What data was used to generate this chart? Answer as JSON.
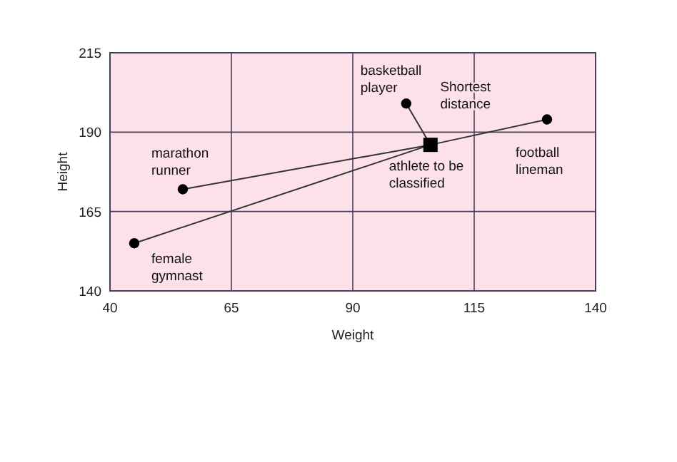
{
  "chart_data": {
    "type": "scatter",
    "xlabel": "Weight",
    "ylabel": "Height",
    "xlim": [
      40,
      140
    ],
    "xticks": [
      40,
      65,
      90,
      115,
      140
    ],
    "ylim": [
      140,
      215
    ],
    "yticks": [
      140,
      165,
      190,
      215
    ],
    "grid": true,
    "series": [
      {
        "type": "line",
        "x": [
          45,
          106
        ],
        "values": [
          155,
          186
        ],
        "color": "#333333"
      },
      {
        "type": "line",
        "x": [
          55,
          106
        ],
        "values": [
          172,
          186
        ],
        "color": "#333333"
      },
      {
        "type": "line",
        "x": [
          101,
          106
        ],
        "values": [
          199,
          186
        ],
        "color": "#333333"
      },
      {
        "type": "line",
        "x": [
          130,
          106
        ],
        "values": [
          194,
          186
        ],
        "color": "#333333"
      },
      {
        "x": [
          45,
          55,
          101,
          130
        ],
        "values": [
          155,
          172,
          199,
          194
        ],
        "color": "#000000",
        "marker": "circle"
      },
      {
        "x": [
          106
        ],
        "values": [
          186
        ],
        "color": "#000000",
        "marker": "square"
      }
    ],
    "annotations": [
      {
        "text": "female gymnast",
        "x": 45,
        "y": 155
      },
      {
        "text": "marathon runner",
        "x": 55,
        "y": 172
      },
      {
        "text": "basketball player",
        "x": 101,
        "y": 199
      },
      {
        "text": "athlete to be classified",
        "x": 106,
        "y": 186
      },
      {
        "text": "football lineman",
        "x": 130,
        "y": 194
      },
      "Shortest distance"
    ]
  }
}
